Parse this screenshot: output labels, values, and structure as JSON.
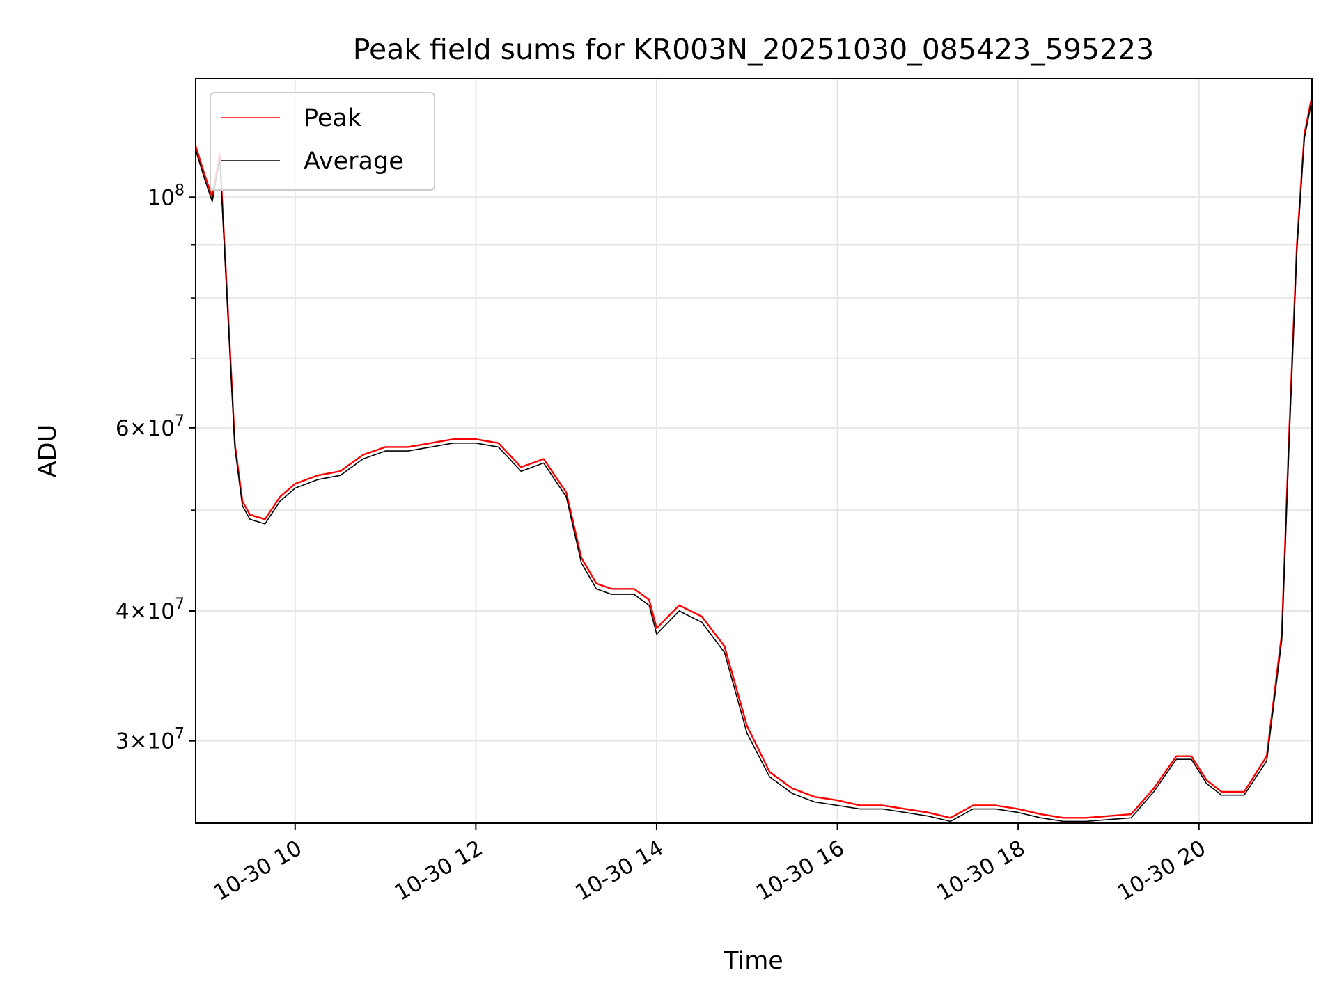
{
  "chart_data": {
    "type": "line",
    "title": "Peak field sums for KR003N_20251030_085423_595223",
    "xlabel": "Time",
    "ylabel": "ADU",
    "yscale": "log",
    "xlim": [
      "2025-10-30 08:54",
      "2025-10-30 21:15"
    ],
    "ylim": [
      25000000,
      130000000
    ],
    "grid": true,
    "legend_position": "top-left",
    "colors": {
      "Peak": "#ff0000",
      "Average": "#000000"
    },
    "x_tick_labels": [
      "10-30 10",
      "10-30 12",
      "10-30 14",
      "10-30 16",
      "10-30 18",
      "10-30 20"
    ],
    "y_tick_labels": [
      {
        "value": 100000000,
        "mantissa": "",
        "exp": "8"
      },
      {
        "value": 60000000,
        "mantissa": "6",
        "exp": "7"
      },
      {
        "value": 40000000,
        "mantissa": "4",
        "exp": "7"
      },
      {
        "value": 30000000,
        "mantissa": "3",
        "exp": "7"
      }
    ],
    "x": [
      "08:54",
      "09:00",
      "09:05",
      "09:10",
      "09:15",
      "09:20",
      "09:25",
      "09:30",
      "09:40",
      "09:50",
      "10:00",
      "10:15",
      "10:30",
      "10:45",
      "11:00",
      "11:15",
      "11:30",
      "11:45",
      "12:00",
      "12:15",
      "12:30",
      "12:45",
      "13:00",
      "13:10",
      "13:20",
      "13:30",
      "13:45",
      "13:55",
      "14:00",
      "14:15",
      "14:30",
      "14:45",
      "15:00",
      "15:15",
      "15:30",
      "15:45",
      "16:00",
      "16:15",
      "16:30",
      "16:45",
      "17:00",
      "17:15",
      "17:30",
      "17:45",
      "18:00",
      "18:15",
      "18:30",
      "18:45",
      "19:00",
      "19:15",
      "19:30",
      "19:45",
      "19:55",
      "20:05",
      "20:15",
      "20:30",
      "20:45",
      "20:55",
      "21:00",
      "21:05",
      "21:10",
      "21:15"
    ],
    "series": [
      {
        "name": "Peak",
        "values": [
          112000000,
          105000000,
          100000000,
          110000000,
          80000000,
          58000000,
          51000000,
          49500000,
          49000000,
          51500000,
          53000000,
          54000000,
          54500000,
          56500000,
          57500000,
          57500000,
          58000000,
          58500000,
          58500000,
          58000000,
          55000000,
          56000000,
          52000000,
          45000000,
          42500000,
          42000000,
          42000000,
          41000000,
          38500000,
          40500000,
          39500000,
          37000000,
          31000000,
          28000000,
          27000000,
          26500000,
          26300000,
          26000000,
          26000000,
          25800000,
          25600000,
          25300000,
          26000000,
          26000000,
          25800000,
          25500000,
          25300000,
          25300000,
          25400000,
          25500000,
          27000000,
          29000000,
          29000000,
          27500000,
          26800000,
          26800000,
          29000000,
          38000000,
          60000000,
          90000000,
          115000000,
          125000000
        ]
      },
      {
        "name": "Average",
        "values": [
          111000000,
          104000000,
          99000000,
          109000000,
          79000000,
          57500000,
          50500000,
          49000000,
          48500000,
          51000000,
          52500000,
          53500000,
          54000000,
          56000000,
          57000000,
          57000000,
          57500000,
          58000000,
          58000000,
          57500000,
          54500000,
          55500000,
          51500000,
          44500000,
          42000000,
          41500000,
          41500000,
          40500000,
          38000000,
          40000000,
          39000000,
          36500000,
          30500000,
          27700000,
          26700000,
          26200000,
          26000000,
          25800000,
          25800000,
          25600000,
          25400000,
          25100000,
          25800000,
          25800000,
          25600000,
          25300000,
          25100000,
          25100000,
          25200000,
          25300000,
          26800000,
          28800000,
          28800000,
          27300000,
          26600000,
          26600000,
          28700000,
          37500000,
          59000000,
          89000000,
          114000000,
          124000000
        ]
      }
    ]
  }
}
